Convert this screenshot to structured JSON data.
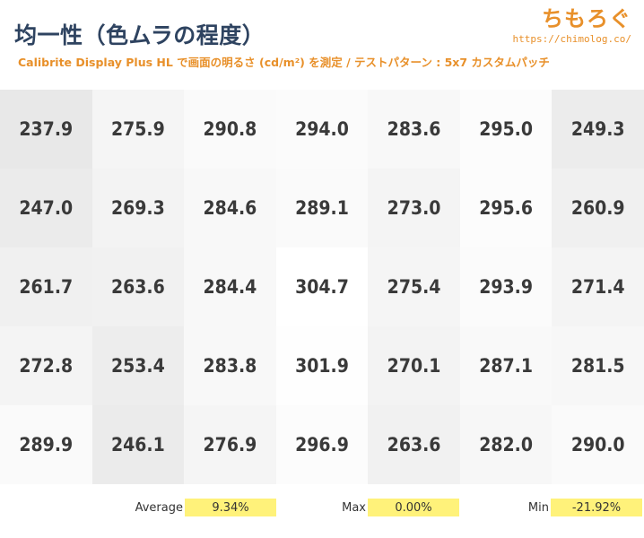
{
  "header": {
    "title": "均一性（色ムラの程度）",
    "subtitle": "Calibrite Display Plus HL で画面の明るさ (cd/m²) を測定 / テストパターン : 5x7 カスタムパッチ",
    "brand_name": "ちもろぐ",
    "brand_url": "https://chimolog.co/"
  },
  "chart_data": {
    "type": "heatmap",
    "title": "均一性（色ムラの程度）",
    "unit": "cd/m²",
    "rows": 5,
    "cols": 7,
    "values": [
      [
        237.9,
        275.9,
        290.8,
        294.0,
        283.6,
        295.0,
        249.3
      ],
      [
        247.0,
        269.3,
        284.6,
        289.1,
        273.0,
        295.6,
        260.9
      ],
      [
        261.7,
        263.6,
        284.4,
        304.7,
        275.4,
        293.9,
        271.4
      ],
      [
        272.8,
        253.4,
        283.8,
        301.9,
        270.1,
        287.1,
        281.5
      ],
      [
        289.9,
        246.1,
        276.9,
        296.9,
        263.6,
        282.0,
        290.0
      ]
    ],
    "labels": [
      [
        "237.9",
        "275.9",
        "290.8",
        "294.0",
        "283.6",
        "295.0",
        "249.3"
      ],
      [
        "247.0",
        "269.3",
        "284.6",
        "289.1",
        "273.0",
        "295.6",
        "260.9"
      ],
      [
        "261.7",
        "263.6",
        "284.4",
        "304.7",
        "275.4",
        "293.9",
        "271.4"
      ],
      [
        "272.8",
        "253.4",
        "283.8",
        "301.9",
        "270.1",
        "287.1",
        "281.5"
      ],
      [
        "289.9",
        "246.1",
        "276.9",
        "296.9",
        "263.6",
        "282.0",
        "290.0"
      ]
    ],
    "color_scale": {
      "low": "#e8e8e8",
      "high": "#ffffff"
    }
  },
  "stats": {
    "average_label": "Average",
    "average_value": "9.34%",
    "max_label": "Max",
    "max_value": "0.00%",
    "min_label": "Min",
    "min_value": "-21.92%",
    "highlight_color": "#fff27a"
  }
}
